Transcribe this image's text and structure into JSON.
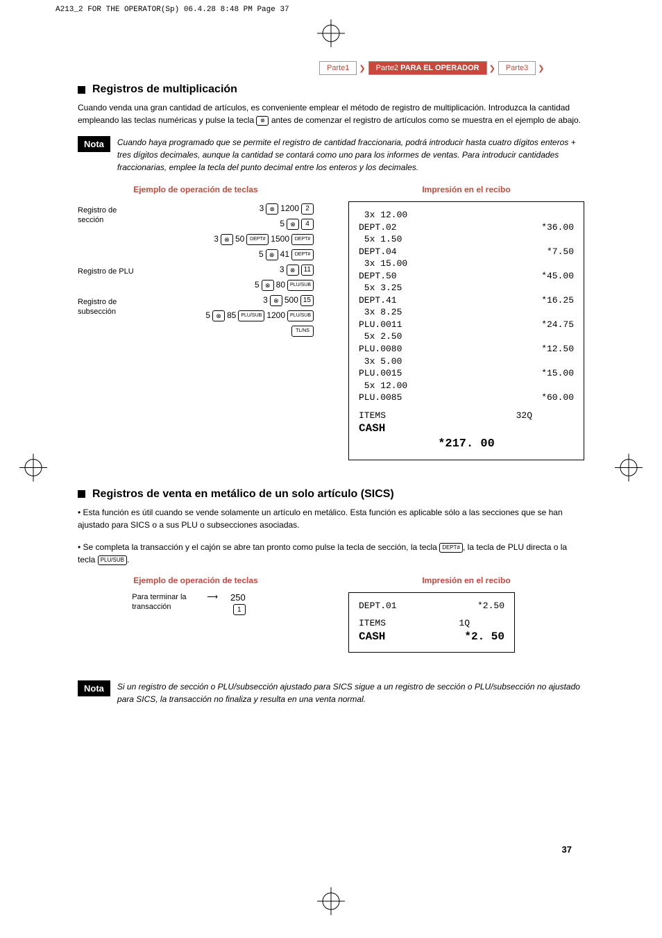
{
  "meta": {
    "header": "A213_2 FOR THE OPERATOR(Sp)  06.4.28 8:48 PM  Page 37"
  },
  "tabs": {
    "parte1": "Parte1",
    "parte2": "Parte2",
    "parte2_label": "PARA EL OPERADOR",
    "parte3": "Parte3"
  },
  "section1": {
    "title": "Registros de multiplicación",
    "body": "Cuando venda una gran cantidad de artículos, es conveniente emplear el método de registro de multiplicación. Introduzca la cantidad empleando las teclas numéricas y pulse la tecla",
    "body2": "antes de comenzar el registro de artículos como se muestra en el ejemplo de abajo.",
    "nota_label": "Nota",
    "nota_text": "Cuando haya programado que se permite el registro de cantidad fraccionaria, podrá introducir hasta cuatro dígitos enteros + tres dígitos decimales, aunque la cantidad se contará como uno para los informes de ventas. Para introducir cantidades fraccionarias, emplee la tecla del punto decimal entre los enteros y los decimales.",
    "col1_title": "Ejemplo de operación de teclas",
    "col2_title": "Impresión en el recibo",
    "labels": {
      "reg_seccion": "Registro de sección",
      "reg_plu": "Registro de PLU",
      "reg_sub": "Registro de subsección"
    },
    "keys": {
      "r1_pre": "3",
      "r1_post": "1200",
      "r1_key": "2",
      "r2_pre": "5",
      "r2_key": "4",
      "r3_pre": "3",
      "r3_mid": "50",
      "r3_k1": "DEPT#",
      "r3_post": "1500",
      "r3_k2": "DEPT#",
      "r4_pre": "5",
      "r4_post": "41",
      "r4_key": "DEPT#",
      "r5_pre": "3",
      "r5_key": "11",
      "r6_pre": "5",
      "r6_post": "80",
      "r6_key": "PLU/SUB",
      "r7_pre": "3",
      "r7_post": "500",
      "r7_key": "15",
      "r8_pre": "5",
      "r8_mid": "85",
      "r8_k1": "PLU/SUB",
      "r8_post": "1200",
      "r8_k2": "PLU/SUB",
      "r9_key": "TL/NS"
    },
    "receipt": [
      {
        "l": " 3x 12.00",
        "r": ""
      },
      {
        "l": "DEPT.02",
        "r": "*36.00"
      },
      {
        "l": " 5x 1.50",
        "r": ""
      },
      {
        "l": "DEPT.04",
        "r": "*7.50"
      },
      {
        "l": " 3x 15.00",
        "r": ""
      },
      {
        "l": "DEPT.50",
        "r": "*45.00"
      },
      {
        "l": " 5x 3.25",
        "r": ""
      },
      {
        "l": "DEPT.41",
        "r": "*16.25"
      },
      {
        "l": " 3x 8.25",
        "r": ""
      },
      {
        "l": "PLU.0011",
        "r": "*24.75"
      },
      {
        "l": " 5x 2.50",
        "r": ""
      },
      {
        "l": "PLU.0080",
        "r": "*12.50"
      },
      {
        "l": " 3x 5.00",
        "r": ""
      },
      {
        "l": "PLU.0015",
        "r": "*15.00"
      },
      {
        "l": " 5x 12.00",
        "r": ""
      },
      {
        "l": "PLU.0085",
        "r": "*60.00"
      }
    ],
    "receipt_items_l": "ITEMS",
    "receipt_items_r": "32Q",
    "receipt_cash": "CASH",
    "receipt_total": "*217. 00"
  },
  "section2": {
    "title": "Registros de venta en metálico de un solo artículo (SICS)",
    "bullet1": "Esta función es útil cuando se vende solamente un artículo en metálico. Esta función es aplicable sólo a las secciones que se han ajustado para SICS o a sus PLU o subsecciones asociadas.",
    "bullet2a": "Se completa la transacción y el cajón se abre tan pronto como pulse la tecla de sección, la tecla",
    "bullet2_key1": "DEPT#",
    "bullet2b": ", la tecla de PLU directa o la tecla",
    "bullet2_key2": "PLU/SUB",
    "bullet2c": ".",
    "col1_title": "Ejemplo de operación de teclas",
    "col2_title": "Impresión en el recibo",
    "label": "Para terminar la transacción",
    "key_num": "250",
    "key_last": "1",
    "receipt": {
      "l1l": "DEPT.01",
      "l1r": "*2.50",
      "l2l": "ITEMS",
      "l2r": "1Q",
      "l3l": "CASH",
      "l3r": "*2. 50"
    },
    "nota_label": "Nota",
    "nota_text": "Si un registro de sección o PLU/subsección ajustado para SICS sigue a un registro de sección o PLU/subsección no ajustado para SICS, la transacción no finaliza y resulta en una venta normal."
  },
  "page_number": "37"
}
